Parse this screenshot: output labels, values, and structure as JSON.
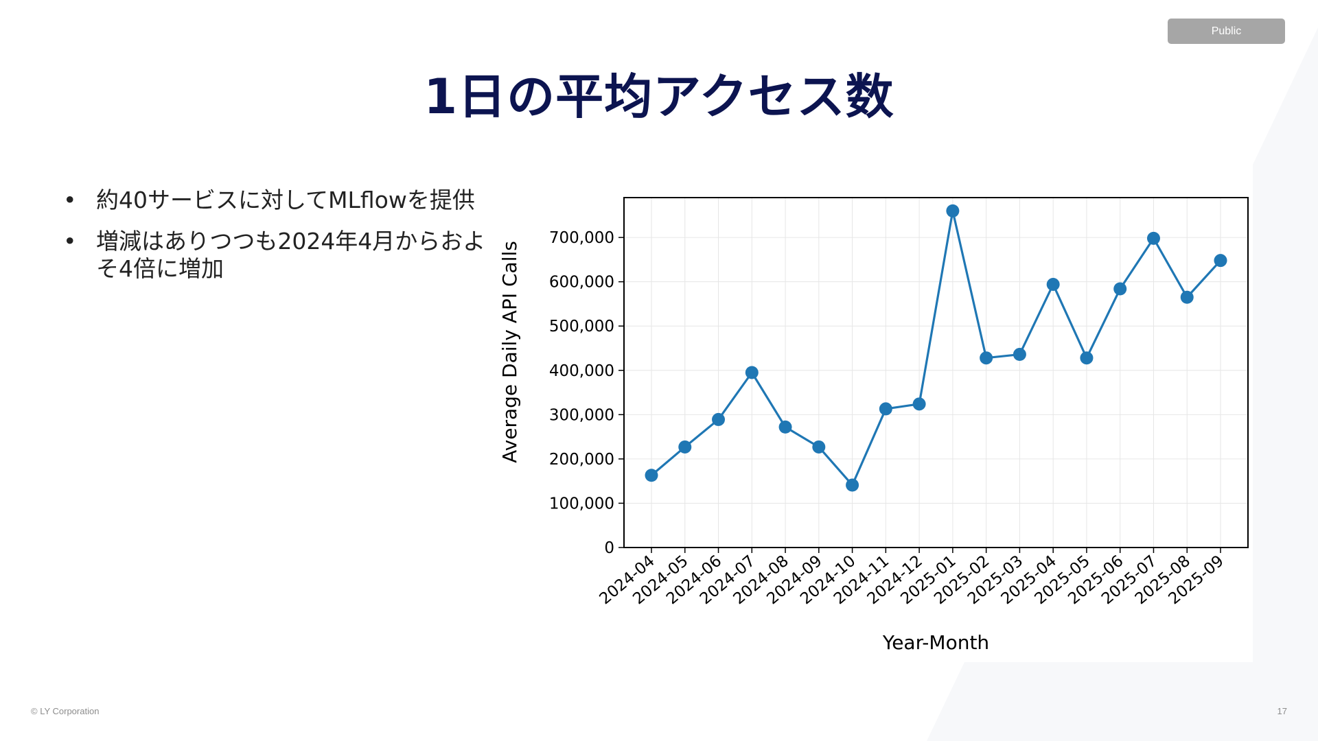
{
  "header": {
    "badge": "Public"
  },
  "slide": {
    "title": "1日の平均アクセス数",
    "bullets": [
      "約40サービスに対してMLflowを提供",
      "増減はありつつも2024年4月からおよそ4倍に増加"
    ]
  },
  "footer": {
    "copyright": "© LY Corporation",
    "page_number": "17"
  },
  "chart_data": {
    "type": "line",
    "xlabel": "Year-Month",
    "ylabel": "Average Daily API Calls",
    "ylim": [
      0,
      790000
    ],
    "yticks": [
      0,
      100000,
      200000,
      300000,
      400000,
      500000,
      600000,
      700000
    ],
    "ytick_labels": [
      "0",
      "100,000",
      "200,000",
      "300,000",
      "400,000",
      "500,000",
      "600,000",
      "700,000"
    ],
    "grid": true,
    "categories": [
      "2024-04",
      "2024-05",
      "2024-06",
      "2024-07",
      "2024-08",
      "2024-09",
      "2024-10",
      "2024-11",
      "2024-12",
      "2025-01",
      "2025-02",
      "2025-03",
      "2025-04",
      "2025-05",
      "2025-06",
      "2025-07",
      "2025-08",
      "2025-09"
    ],
    "series": [
      {
        "color": "#1f77b4",
        "values": [
          163000,
          227000,
          289000,
          395000,
          272000,
          227000,
          141000,
          313000,
          324000,
          760000,
          428000,
          436000,
          594000,
          428000,
          584000,
          698000,
          565000,
          648000
        ]
      }
    ]
  }
}
